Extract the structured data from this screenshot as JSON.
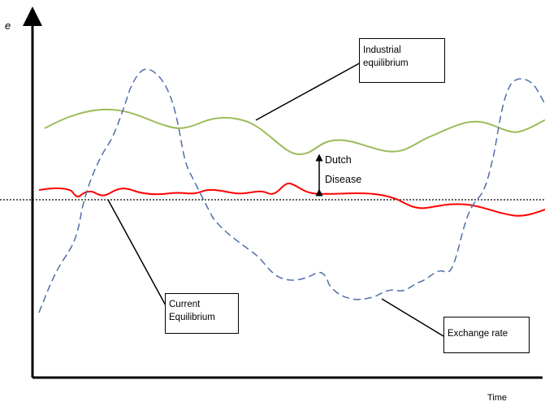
{
  "axes": {
    "y_label": "e",
    "x_label": "Time"
  },
  "labels": {
    "industrial": [
      "Industrial",
      "equilibrium"
    ],
    "current": [
      "Current",
      "Equilibrium"
    ],
    "exchange": "Exchange rate",
    "dutch": [
      "Dutch",
      "Disease"
    ]
  },
  "colors": {
    "industrial_curve": "#9bbb59",
    "current_curve": "#ff0000",
    "exchange_curve": "#4f6ea8",
    "axis": "#000000",
    "reference_line": "#000000"
  }
}
